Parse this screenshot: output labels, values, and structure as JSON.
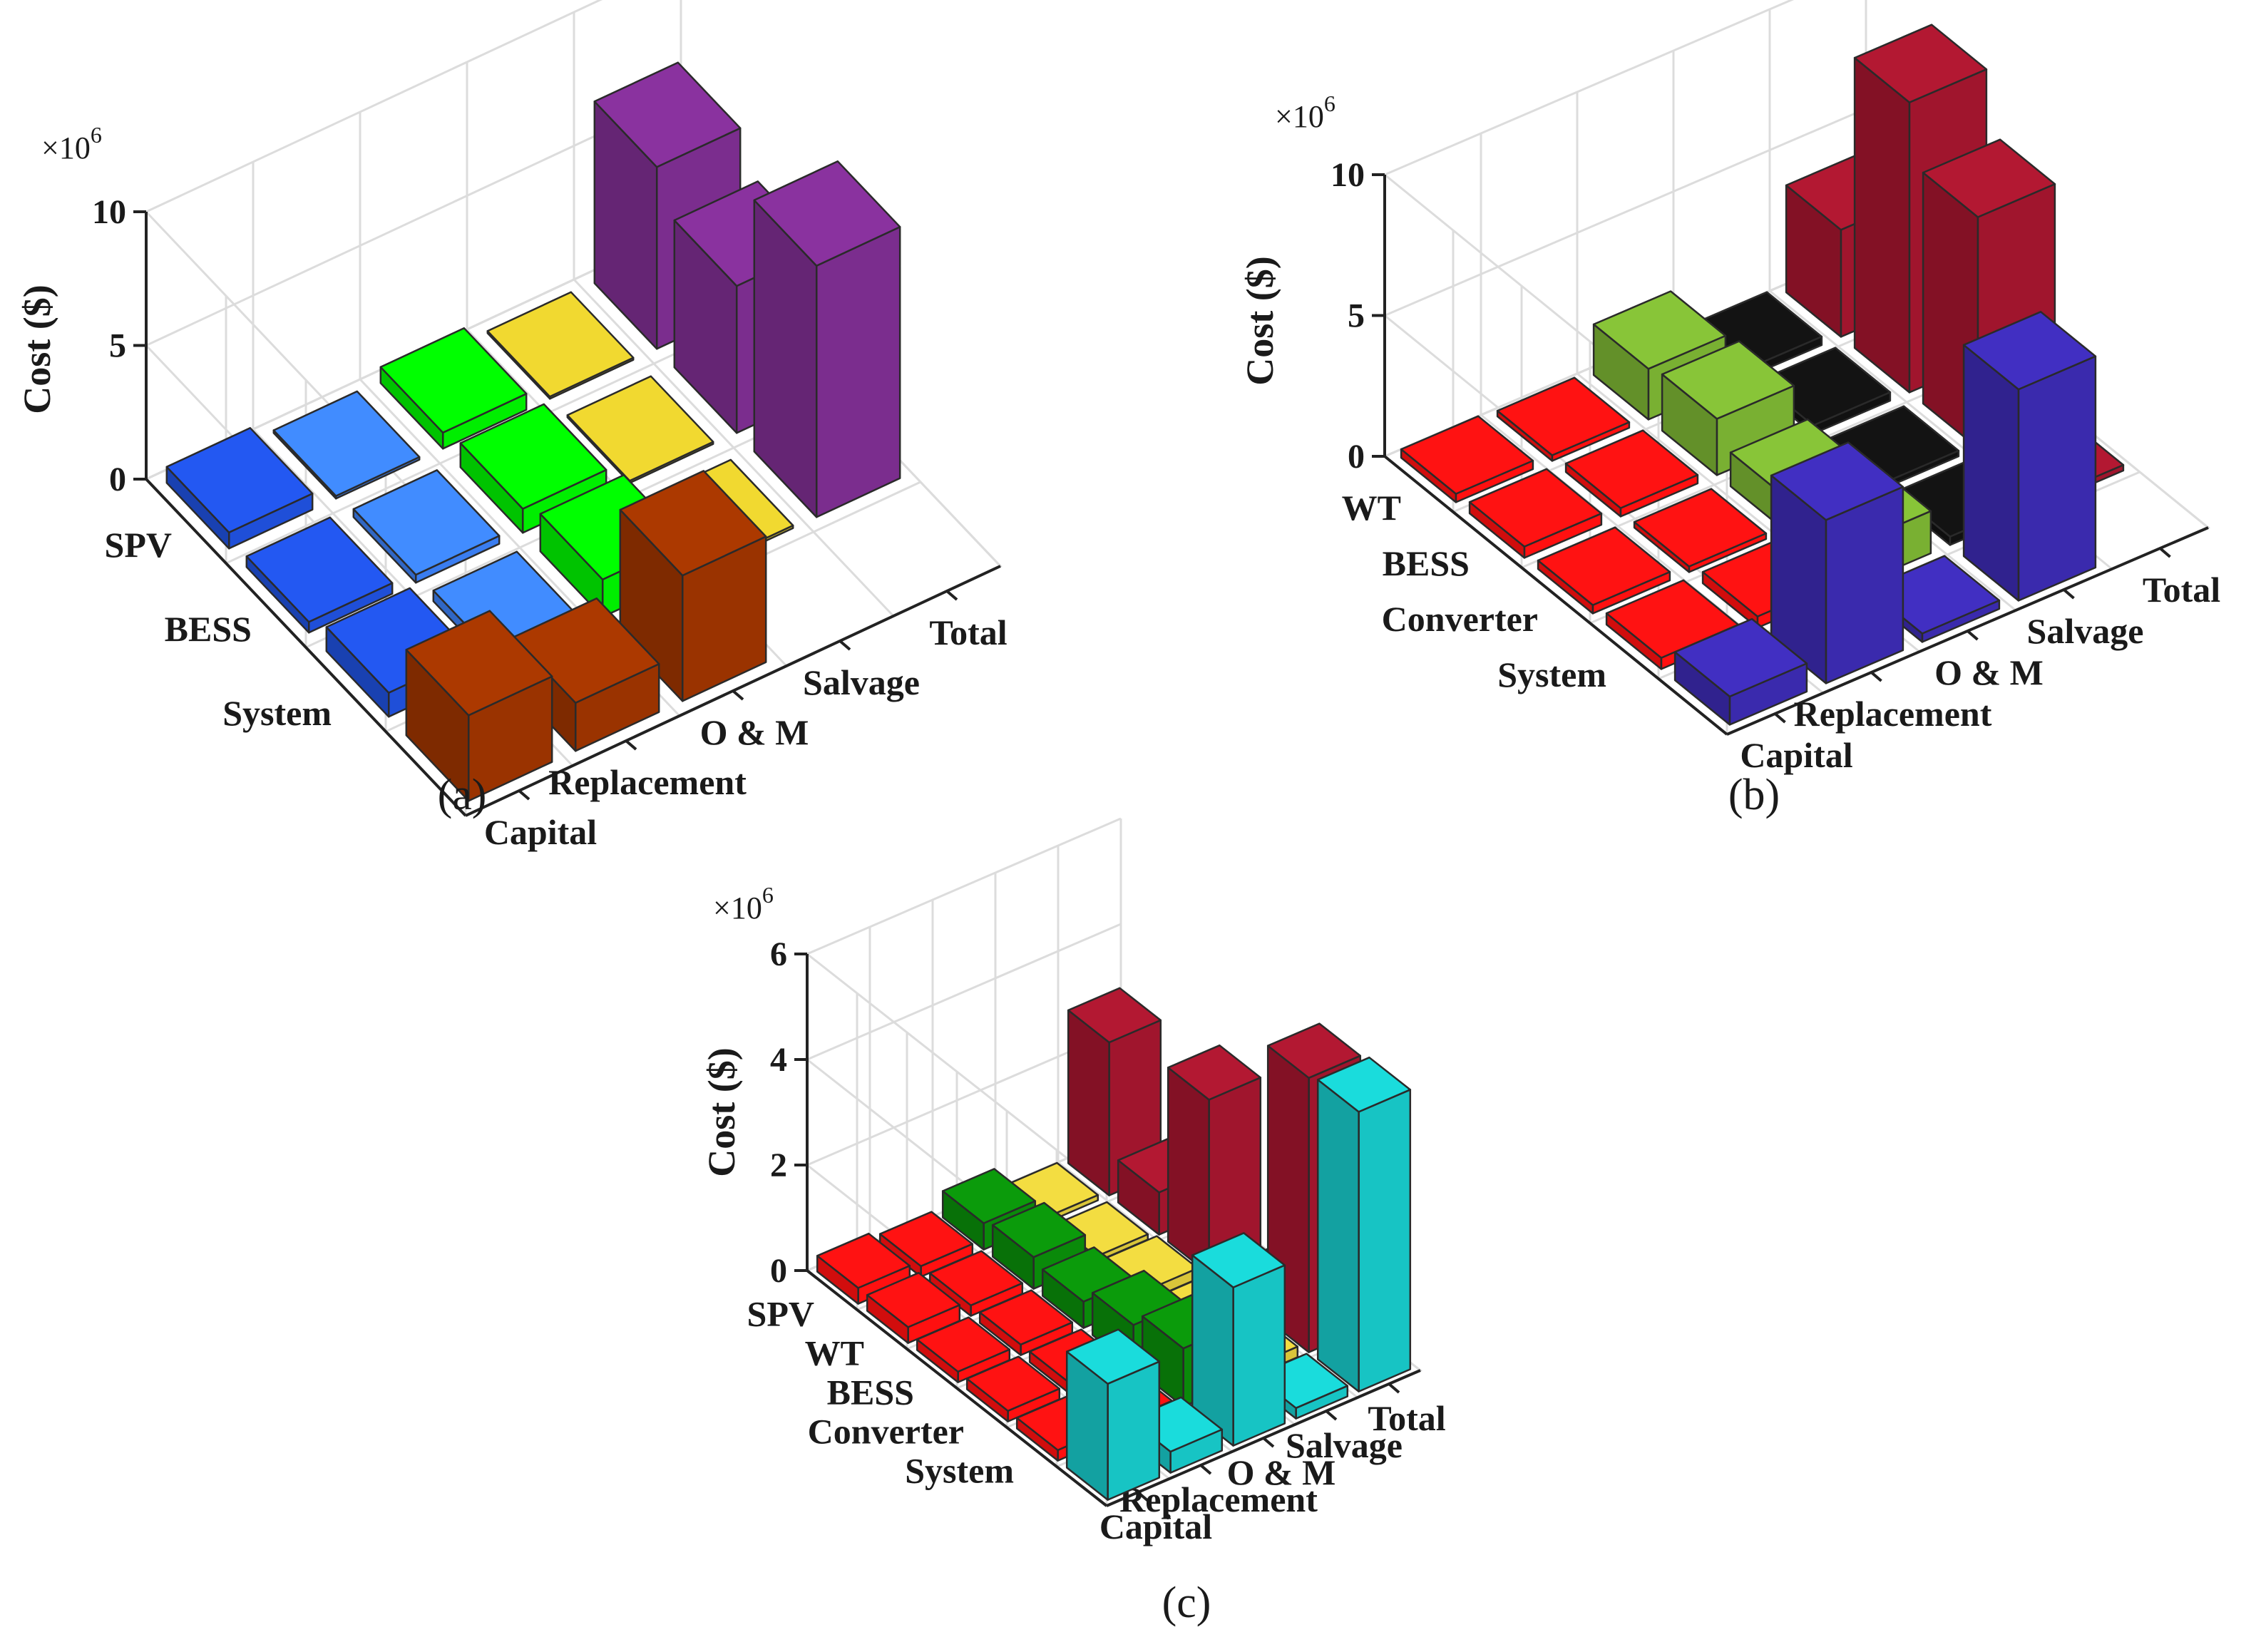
{
  "chart_data": [
    {
      "type": "bar3d",
      "caption": "(a)",
      "ylabel": "Cost ($)",
      "multiplier": "×10",
      "exponent": "6",
      "zlim": [
        0,
        10
      ],
      "zticks": [
        0,
        5,
        10
      ],
      "rows": [
        "SPV",
        "BESS",
        "System"
      ],
      "cols": [
        "Capital",
        "Replacement",
        "O & M",
        "Salvage",
        "Total"
      ],
      "col_colors": [
        "#1f4fd8",
        "#3a7df0",
        "#00ee00",
        "#d7c22b",
        "#7b2d8e"
      ],
      "col_colors_used": [
        "#3a7df0",
        "#3a7df0",
        "#00f000",
        "#d9c53a",
        "#7b2d8e"
      ],
      "system_color": "#9a3300",
      "values": [
        [
          0.6,
          0.1,
          0.6,
          -0.02,
          6.8
        ],
        [
          0.4,
          0.3,
          0.9,
          -0.05,
          5.5
        ],
        [
          0.9,
          0.4,
          1.4,
          -0.1,
          9.4
        ]
      ],
      "system_values": [
        3.2,
        1.8,
        4.7,
        0.0,
        0.0
      ]
    },
    {
      "type": "bar3d",
      "caption": "(b)",
      "ylabel": "Cost ($)",
      "multiplier": "×10",
      "exponent": "6",
      "zlim": [
        0,
        10
      ],
      "zticks": [
        0,
        5,
        10
      ],
      "rows": [
        "WT",
        "BESS",
        "Converter",
        "System"
      ],
      "cols": [
        "Capital",
        "Replacement",
        "O & M",
        "Salvage",
        "Total"
      ],
      "col_colors": [
        "#ff1010",
        "#ff1010",
        "#79b032",
        "#111111",
        "#a0152d"
      ],
      "system_color": "#3a2aad",
      "values": [
        [
          0.3,
          0.2,
          1.8,
          0.3,
          3.8
        ],
        [
          0.4,
          0.3,
          2.0,
          0.3,
          10.3
        ],
        [
          0.3,
          0.2,
          1.2,
          0.2,
          8.2
        ],
        [
          0.4,
          0.4,
          1.5,
          0.3,
          0.2
        ]
      ],
      "system_values": [
        1.0,
        5.8,
        0.3,
        7.5,
        0.0
      ]
    },
    {
      "type": "bar3d",
      "caption": "(c)",
      "ylabel": "Cost ($)",
      "multiplier": "×10",
      "exponent": "6",
      "zlim": [
        0,
        6
      ],
      "zticks": [
        0,
        2,
        4,
        6
      ],
      "rows": [
        "SPV",
        "WT",
        "BESS",
        "Converter",
        "System"
      ],
      "cols": [
        "Capital",
        "Replacement",
        "O & M",
        "Salvage",
        "Total"
      ],
      "col_colors": [
        "#ff1010",
        "#ff1010",
        "#0a8a0a",
        "#d9c53a",
        "#a0152d"
      ],
      "system_color": "#17c4c4",
      "values": [
        [
          0.3,
          0.2,
          0.5,
          0.1,
          2.9
        ],
        [
          0.3,
          0.2,
          0.6,
          0.1,
          0.8
        ],
        [
          0.2,
          0.2,
          0.5,
          0.2,
          3.3
        ],
        [
          0.2,
          0.2,
          0.8,
          0.2,
          0.2
        ],
        [
          0.2,
          0.2,
          1.1,
          0.2,
          5.2
        ]
      ],
      "system_values": [
        2.2,
        0.4,
        3.0,
        0.2,
        5.3
      ]
    }
  ]
}
